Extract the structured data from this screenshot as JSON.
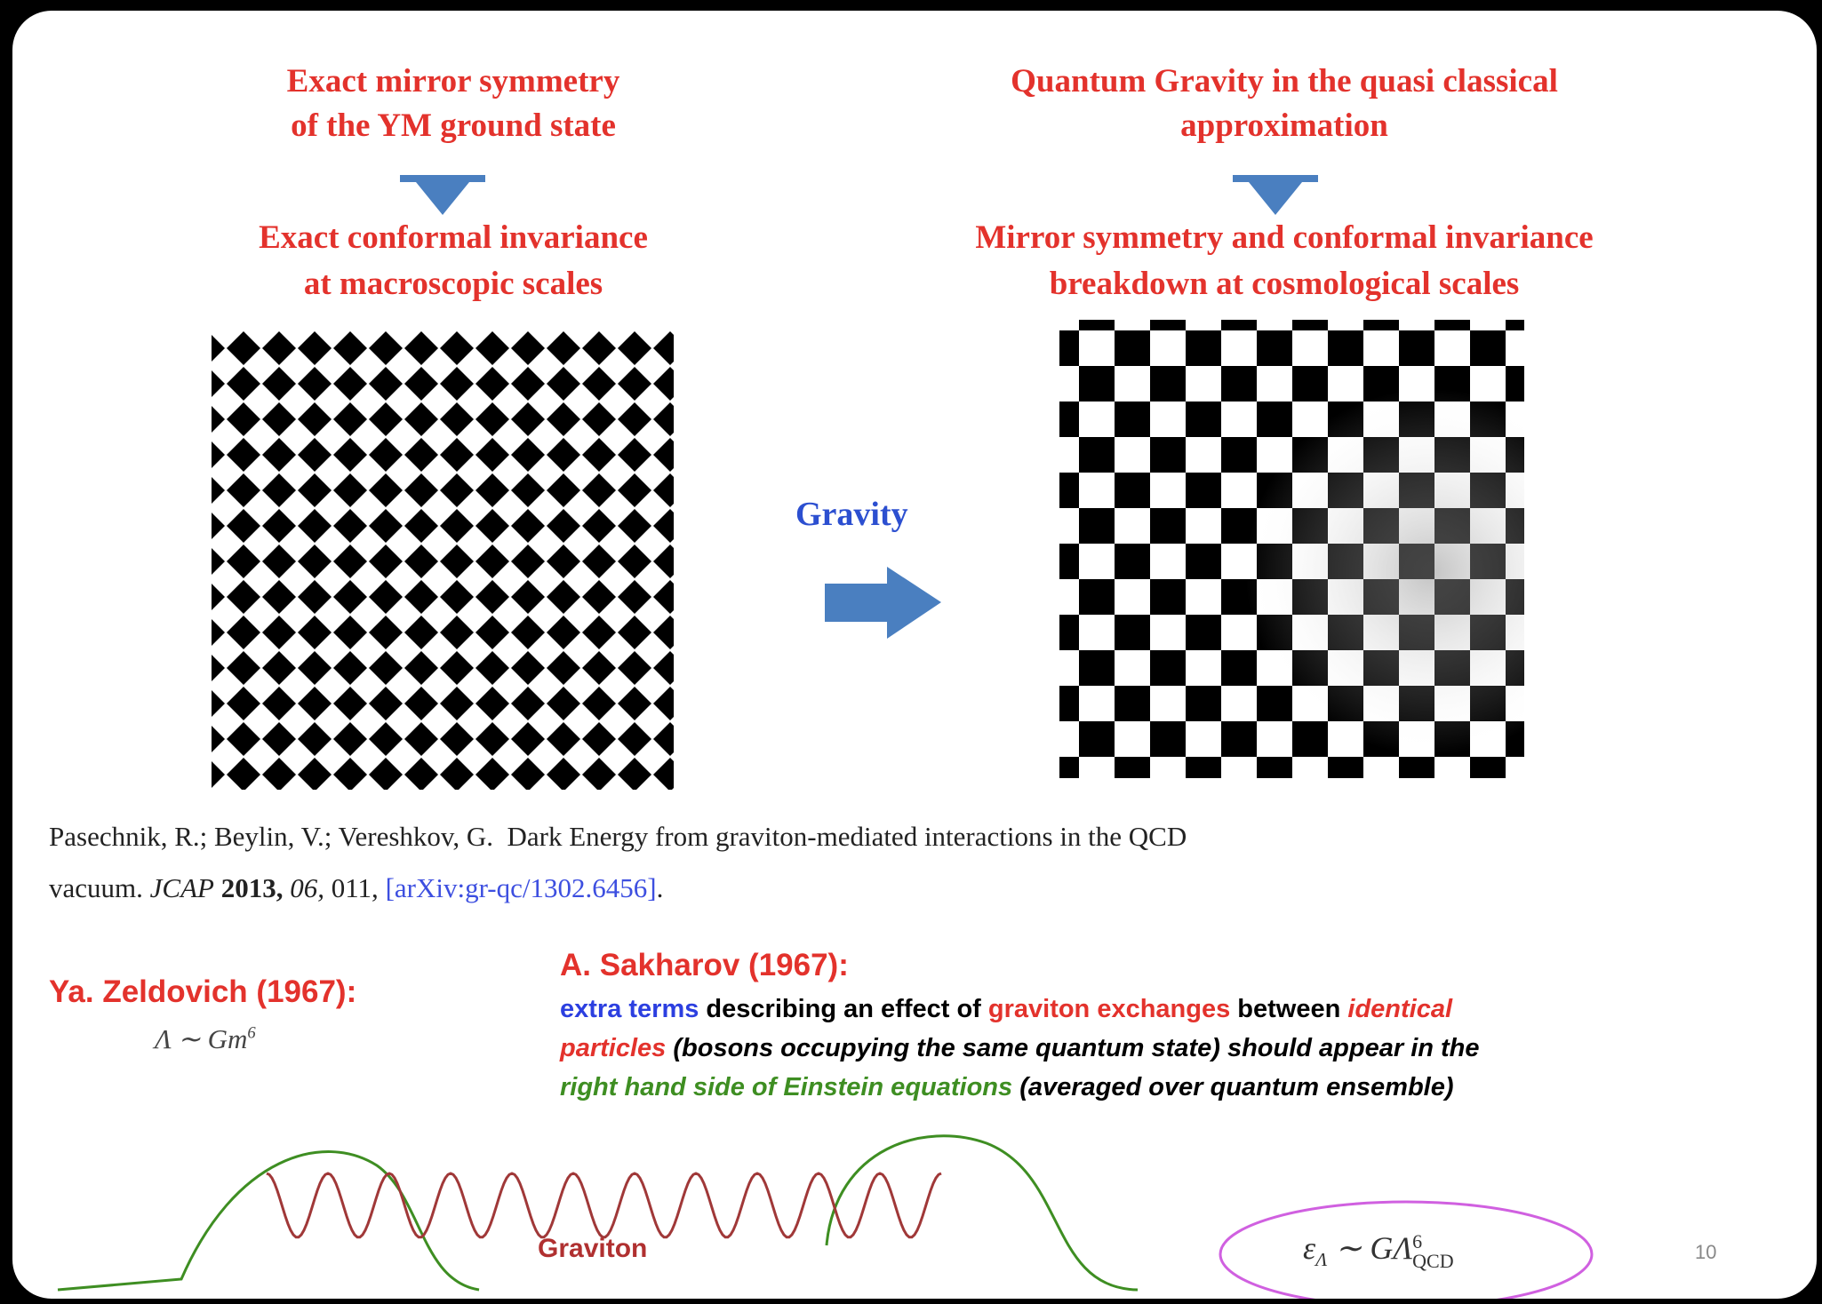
{
  "left": {
    "heading": [
      "Exact mirror symmetry",
      "of the YM ground state"
    ],
    "subheading": [
      "Exact conformal invariance",
      "at macroscopic scales"
    ]
  },
  "right": {
    "heading": [
      "Quantum Gravity in the quasi classical",
      "approximation"
    ],
    "subheading": [
      "Mirror symmetry and conformal invariance",
      "breakdown at cosmological scales"
    ]
  },
  "gravity_label": "Gravity",
  "reference": {
    "line1": "Pasechnik, R.; Beylin, V.; Vereshkov, G.  Dark Energy from graviton-mediated interactions in the QCD",
    "line2": {
      "start": "vacuum. ",
      "journal": "JCAP",
      "year": " 2013,",
      "volume": " 06,",
      "page": " 011, ",
      "arxiv": "[arXiv:gr-qc/1302.6456]",
      "end": "."
    }
  },
  "zeldovich": {
    "title": "Ya. Zeldovich (1967):",
    "formula": {
      "base": "Λ ∼ Gm",
      "exponent": "6"
    }
  },
  "sakharov": {
    "title": "A. Sakharov (1967):",
    "lines": [
      [
        "extra terms",
        " describing an effect of ",
        "graviton exchanges",
        " between ",
        "identical"
      ],
      [
        "particles",
        " (bosons occupying the same quantum state) should appear in the"
      ],
      [
        "right hand side of Einstein equations",
        " (averaged over quantum ensemble)"
      ]
    ]
  },
  "graviton_label": "Graviton",
  "energy_formula": {
    "symbol": "ε",
    "symbol_sub": "Λ",
    "middle": " ∼ GΛ",
    "sup": "6",
    "sub": "QCD"
  },
  "page_number": "10"
}
